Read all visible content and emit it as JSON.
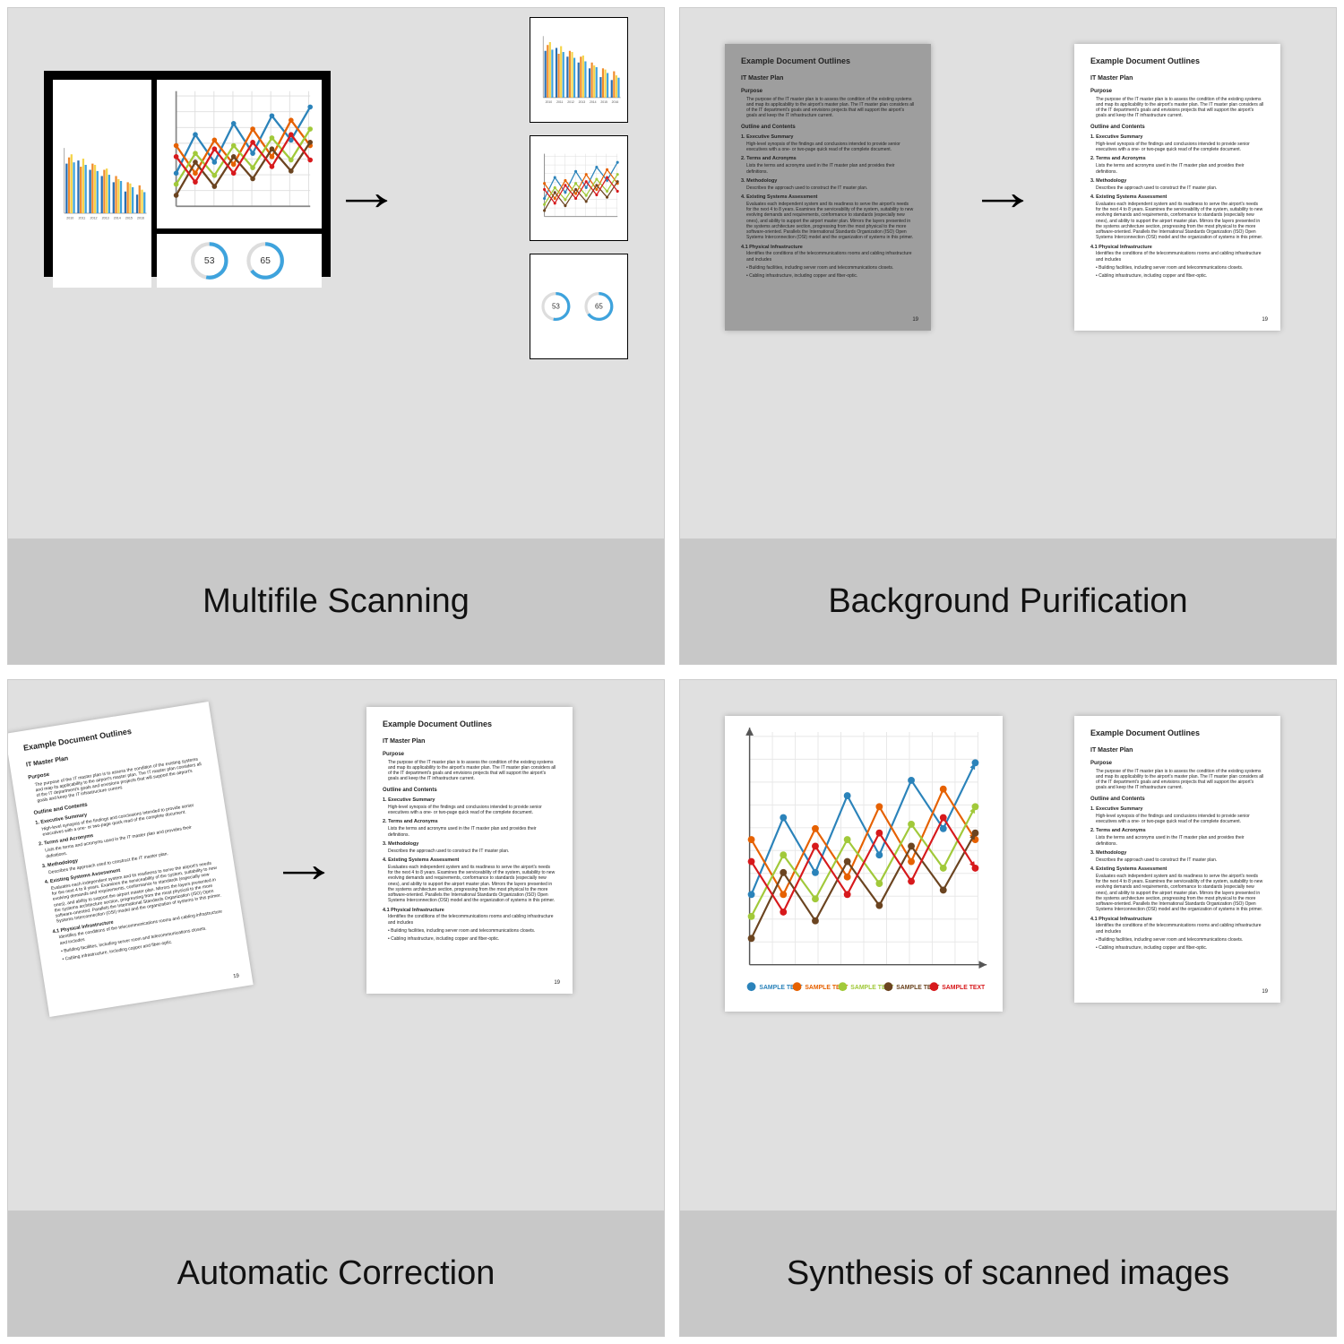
{
  "captions": {
    "p1": "Multifile Scanning",
    "p2": "Background Purification",
    "p3": "Automatic Correction",
    "p4": "Synthesis of scanned images"
  },
  "colors": {
    "panel_bg": "#e0e0e0",
    "caption_bg": "#c8c8c8",
    "doc_grey": "#9e9e9e",
    "arrow": "#000000",
    "bar_series": [
      "#2b6fb3",
      "#f08c2e",
      "#f5d54a",
      "#3ea3dd"
    ],
    "line_series": [
      "#2b83ba",
      "#e66101",
      "#a1c93a",
      "#6b4420",
      "#d7191c"
    ],
    "gauge": "#3ea3dd"
  },
  "bars": {
    "years": [
      "2010",
      "2011",
      "2012",
      "2013",
      "2014",
      "2015",
      "2016"
    ],
    "series": [
      [
        80,
        85,
        70,
        60,
        50,
        35,
        30
      ],
      [
        90,
        75,
        80,
        70,
        60,
        50,
        45
      ],
      [
        95,
        88,
        78,
        72,
        55,
        48,
        38
      ],
      [
        82,
        78,
        68,
        62,
        52,
        42,
        34
      ]
    ],
    "ymax": 100
  },
  "lines": {
    "legend": [
      "SAMPLE TEXT",
      "SAMPLE TEXT",
      "SAMPLE TEXT",
      "SAMPLE TEXT",
      "SAMPLE TEXT"
    ],
    "series": [
      [
        30,
        65,
        40,
        75,
        48,
        82,
        60,
        90
      ],
      [
        55,
        30,
        60,
        38,
        70,
        45,
        78,
        55
      ],
      [
        20,
        48,
        28,
        55,
        35,
        62,
        42,
        70
      ],
      [
        10,
        40,
        18,
        45,
        25,
        52,
        32,
        58
      ],
      [
        45,
        22,
        52,
        30,
        58,
        36,
        65,
        42
      ]
    ],
    "ymax": 100
  },
  "gauges": {
    "values": [
      53,
      65
    ]
  },
  "doc": {
    "title": "Example Document Outlines",
    "h2a": "IT Master Plan",
    "h3a": "Purpose",
    "para1": "The purpose of the IT master plan is to assess the condition of the existing systems and map its applicability to the airport's master plan. The IT master plan considers all of the IT department's goals and envisions projects that will support the airport's goals and keep the IT infrastructure current.",
    "h3b": "Outline and Contents",
    "i1": "1. Executive Summary",
    "i1b": "High-level synopsis of the findings and conclusions intended to provide senior executives with a one- or two-page quick read of the complete document.",
    "i2": "2. Terms and Acronyms",
    "i2b": "Lists the terms and acronyms used in the IT master plan and provides their definitions.",
    "i3": "3. Methodology",
    "i3b": "Describes the approach used to construct the IT master plan.",
    "i4": "4. Existing Systems Assessment",
    "i4b": "Evaluates each independent system and its readiness to serve the airport's needs for the next 4 to 8 years. Examines the serviceability of the system, suitability to new evolving demands and requirements, conformance to standards (especially new ones), and ability to support the airport master plan. Mirrors the layers presented in the systems architecture section, progressing from the most physical to the more software-oriented. Parallels the International Standards Organization (ISO) Open Systems Interconnection (OSI) model and the organization of systems in this primer.",
    "i41": "4.1 Physical Infrastructure",
    "i41b": "Identifies the conditions of the telecommunications rooms and cabling infrastructure and includes",
    "b1": "• Building facilities, including server room and telecommunications closets.",
    "b2": "• Cabling infrastructure, including copper and fiber-optic.",
    "page": "19"
  }
}
